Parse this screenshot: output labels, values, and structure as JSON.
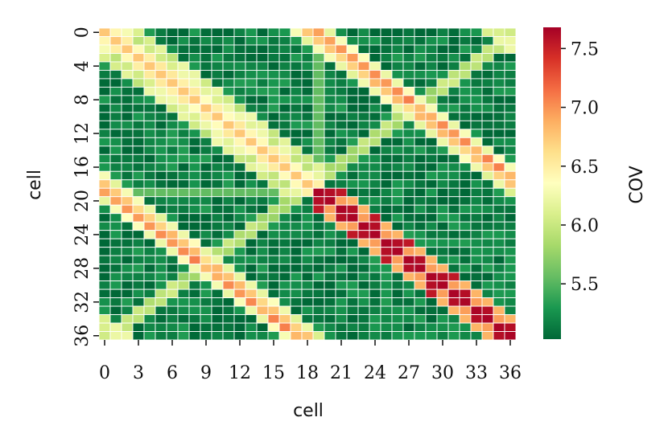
{
  "chart_data": {
    "type": "heatmap",
    "n": 37,
    "xlabel": "cell",
    "ylabel": "cell",
    "x_tick_labels": [
      "0",
      "3",
      "6",
      "9",
      "12",
      "15",
      "18",
      "21",
      "24",
      "27",
      "30",
      "33",
      "36"
    ],
    "x_tick_indices": [
      0,
      3,
      6,
      9,
      12,
      15,
      18,
      21,
      24,
      27,
      30,
      33,
      36
    ],
    "y_tick_labels": [
      "0",
      "4",
      "8",
      "12",
      "16",
      "20",
      "24",
      "28",
      "32",
      "36"
    ],
    "y_tick_indices": [
      0,
      4,
      8,
      12,
      16,
      20,
      24,
      28,
      32,
      36
    ],
    "colorbar": {
      "label": "COV",
      "min": 5.03,
      "max": 7.68,
      "tick_labels": [
        "5.5",
        "6.0",
        "6.5",
        "7.0",
        "7.5"
      ],
      "tick_values": [
        5.5,
        6.0,
        6.5,
        7.0,
        7.5
      ]
    },
    "colormap": "RdYlGn_r",
    "structure": {
      "base_value": 5.15,
      "neighbor_offset_value": 6.45,
      "ring_value": 6.55,
      "diagonal_value": 6.55,
      "paired_diagonal_high": 7.65,
      "paired_diagonal_mid": 6.95,
      "secondary_band_value": 6.1,
      "row19_hot": 7.65
    },
    "grid": true
  }
}
